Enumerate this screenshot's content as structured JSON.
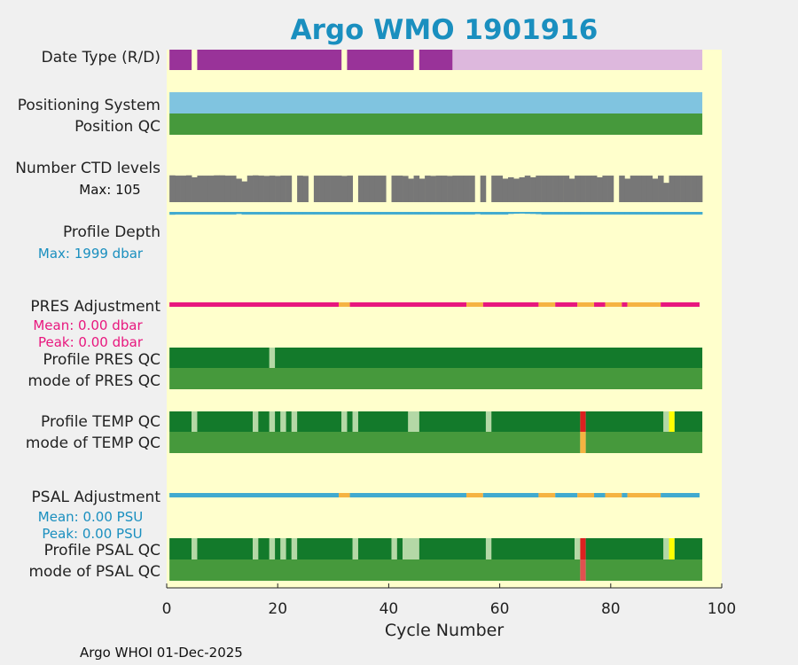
{
  "chart_data": {
    "type": "bar",
    "title": "Argo WMO 1901916",
    "xlabel": "Cycle Number",
    "xlim": [
      0,
      100
    ],
    "x_ticks": [
      0,
      20,
      40,
      60,
      80,
      100
    ],
    "x_tick_labels": [
      "0",
      "20",
      "40",
      "60",
      "80",
      "100"
    ],
    "footer": "Argo WHOI 01-Dec-2025",
    "colors": {
      "background": "#ffffcc",
      "page": "#f0f0f0",
      "title": "#1a8fbf",
      "purple": "#993399",
      "light_purple": "#ddb8dd",
      "light_blue": "#80c4e0",
      "green": "#46993c",
      "dark_green": "#137a2b",
      "pale_green": "#b4d8a6",
      "gray": "#777777",
      "teal": "#41aacf",
      "pink": "#e8177e",
      "orange": "#f5b342",
      "red": "#dd2020",
      "yellow": "#ffff00",
      "salmon": "#e05050"
    },
    "rows": [
      {
        "key": "date_type",
        "label": "Date Type (R/D)"
      },
      {
        "key": "positioning",
        "label": "Positioning System"
      },
      {
        "key": "position_qc",
        "label": "Position QC"
      },
      {
        "key": "ctd_levels",
        "label": "Number CTD levels",
        "stat": "Max: 105"
      },
      {
        "key": "profile_depth",
        "label": "Profile Depth",
        "stat": "Max: 1999 dbar"
      },
      {
        "key": "pres_adj",
        "label": "PRES Adjustment",
        "stats": [
          "Mean: 0.00 dbar",
          "Peak: 0.00 dbar"
        ]
      },
      {
        "key": "profile_pres_qc",
        "label": "Profile PRES QC"
      },
      {
        "key": "mode_pres_qc",
        "label": "mode of PRES QC"
      },
      {
        "key": "profile_temp_qc",
        "label": "Profile TEMP QC"
      },
      {
        "key": "mode_temp_qc",
        "label": "mode of TEMP QC"
      },
      {
        "key": "psal_adj",
        "label": "PSAL Adjustment",
        "stats": [
          "Mean: 0.00 PSU",
          "Peak: 0.00 PSU"
        ]
      },
      {
        "key": "profile_psal_qc",
        "label": "Profile PSAL QC"
      },
      {
        "key": "mode_psal_qc",
        "label": "mode of PSAL QC"
      }
    ],
    "series": {
      "date_type": {
        "segments": [
          [
            0.5,
            4.5,
            "purple"
          ],
          [
            5.5,
            31.5,
            "purple"
          ],
          [
            32.5,
            44.5,
            "purple"
          ],
          [
            45.5,
            51.5,
            "purple"
          ],
          [
            51.5,
            96.5,
            "light_purple"
          ]
        ]
      },
      "positioning": {
        "segments": [
          [
            0.5,
            96.5,
            "light_blue"
          ]
        ]
      },
      "position_qc": {
        "segments": [
          [
            0.5,
            96.5,
            "green"
          ]
        ]
      },
      "ctd_levels": {
        "max": 105,
        "values": [
          97,
          96,
          96,
          97,
          90,
          96,
          96,
          96,
          97,
          97,
          96,
          96,
          85,
          75,
          96,
          97,
          96,
          95,
          96,
          95,
          96,
          96,
          0,
          96,
          95,
          0,
          96,
          96,
          96,
          96,
          96,
          95,
          96,
          0,
          96,
          96,
          96,
          96,
          96,
          0,
          96,
          96,
          95,
          85,
          96,
          85,
          96,
          95,
          96,
          96,
          95,
          96,
          96,
          96,
          96,
          0,
          96,
          0,
          96,
          96,
          85,
          90,
          85,
          90,
          96,
          90,
          96,
          96,
          96,
          96,
          96,
          96,
          85,
          96,
          96,
          96,
          96,
          90,
          96,
          96,
          0,
          96,
          85,
          96,
          96,
          96,
          96,
          85,
          96,
          70,
          96,
          96,
          96,
          96,
          96,
          96
        ]
      },
      "profile_depth": {
        "max": 1999,
        "values": [
          100,
          92,
          92,
          92,
          92,
          92,
          92,
          92,
          92,
          92,
          92,
          92,
          75,
          92,
          92,
          92,
          92,
          92,
          92,
          92,
          92,
          92,
          92,
          92,
          92,
          92,
          92,
          92,
          92,
          92,
          92,
          92,
          92,
          92,
          92,
          92,
          92,
          92,
          92,
          92,
          92,
          92,
          92,
          92,
          92,
          92,
          92,
          92,
          92,
          92,
          92,
          92,
          92,
          92,
          92,
          78,
          92,
          92,
          92,
          92,
          92,
          72,
          64,
          60,
          68,
          72,
          80,
          92,
          92,
          92,
          92,
          92,
          92,
          92,
          92,
          92,
          92,
          92,
          92,
          92,
          92,
          92,
          92,
          92,
          92,
          92,
          92,
          92,
          92,
          92,
          92,
          92,
          92,
          92,
          92,
          92
        ]
      },
      "pres_adj": {
        "segments": [
          [
            0.5,
            31,
            "pink"
          ],
          [
            31,
            33,
            "orange"
          ],
          [
            33,
            54,
            "pink"
          ],
          [
            54,
            57,
            "orange"
          ],
          [
            57,
            67,
            "pink"
          ],
          [
            67,
            70,
            "orange"
          ],
          [
            70,
            74,
            "pink"
          ],
          [
            74,
            77,
            "orange"
          ],
          [
            77,
            79,
            "pink"
          ],
          [
            79,
            82,
            "orange"
          ],
          [
            82,
            83,
            "pink"
          ],
          [
            83,
            89,
            "orange"
          ],
          [
            89,
            96,
            "pink"
          ]
        ]
      },
      "profile_pres_qc": {
        "segments": [
          [
            0.5,
            18.5,
            "dark_green"
          ],
          [
            18.5,
            19.5,
            "pale_green"
          ],
          [
            19.5,
            96.5,
            "dark_green"
          ]
        ]
      },
      "mode_pres_qc": {
        "segments": [
          [
            0.5,
            96.5,
            "green"
          ]
        ]
      },
      "profile_temp_qc": {
        "segments": [
          [
            0.5,
            4.5,
            "dark_green"
          ],
          [
            4.5,
            5.5,
            "pale_green"
          ],
          [
            5.5,
            15.5,
            "dark_green"
          ],
          [
            15.5,
            16.5,
            "pale_green"
          ],
          [
            16.5,
            18.5,
            "dark_green"
          ],
          [
            18.5,
            19.5,
            "pale_green"
          ],
          [
            19.5,
            20.5,
            "dark_green"
          ],
          [
            20.5,
            21.5,
            "pale_green"
          ],
          [
            21.5,
            22.5,
            "dark_green"
          ],
          [
            22.5,
            23.5,
            "pale_green"
          ],
          [
            23.5,
            31.5,
            "dark_green"
          ],
          [
            31.5,
            32.5,
            "pale_green"
          ],
          [
            32.5,
            33.5,
            "dark_green"
          ],
          [
            33.5,
            34.5,
            "pale_green"
          ],
          [
            34.5,
            43.5,
            "dark_green"
          ],
          [
            43.5,
            45.5,
            "pale_green"
          ],
          [
            45.5,
            57.5,
            "dark_green"
          ],
          [
            57.5,
            58.5,
            "pale_green"
          ],
          [
            58.5,
            74.5,
            "dark_green"
          ],
          [
            74.5,
            75.5,
            "red"
          ],
          [
            75.5,
            89.5,
            "dark_green"
          ],
          [
            89.5,
            90.5,
            "pale_green"
          ],
          [
            90.5,
            91.5,
            "yellow"
          ],
          [
            91.5,
            96.5,
            "dark_green"
          ]
        ]
      },
      "mode_temp_qc": {
        "segments": [
          [
            0.5,
            74.5,
            "green"
          ],
          [
            74.5,
            75.5,
            "orange"
          ],
          [
            75.5,
            96.5,
            "green"
          ]
        ]
      },
      "psal_adj": {
        "segments": [
          [
            0.5,
            31,
            "teal"
          ],
          [
            31,
            33,
            "orange"
          ],
          [
            33,
            54,
            "teal"
          ],
          [
            54,
            57,
            "orange"
          ],
          [
            57,
            67,
            "teal"
          ],
          [
            67,
            70,
            "orange"
          ],
          [
            70,
            74,
            "teal"
          ],
          [
            74,
            77,
            "orange"
          ],
          [
            77,
            79,
            "teal"
          ],
          [
            79,
            82,
            "orange"
          ],
          [
            82,
            83,
            "teal"
          ],
          [
            83,
            89,
            "orange"
          ],
          [
            89,
            96,
            "teal"
          ]
        ]
      },
      "profile_psal_qc": {
        "segments": [
          [
            0.5,
            4.5,
            "dark_green"
          ],
          [
            4.5,
            5.5,
            "pale_green"
          ],
          [
            5.5,
            15.5,
            "dark_green"
          ],
          [
            15.5,
            16.5,
            "pale_green"
          ],
          [
            16.5,
            18.5,
            "dark_green"
          ],
          [
            18.5,
            19.5,
            "pale_green"
          ],
          [
            19.5,
            20.5,
            "dark_green"
          ],
          [
            20.5,
            21.5,
            "pale_green"
          ],
          [
            21.5,
            22.5,
            "dark_green"
          ],
          [
            22.5,
            23.5,
            "pale_green"
          ],
          [
            23.5,
            33.5,
            "dark_green"
          ],
          [
            33.5,
            34.5,
            "pale_green"
          ],
          [
            34.5,
            40.5,
            "dark_green"
          ],
          [
            40.5,
            41.5,
            "pale_green"
          ],
          [
            41.5,
            42.5,
            "dark_green"
          ],
          [
            42.5,
            45.5,
            "pale_green"
          ],
          [
            45.5,
            57.5,
            "dark_green"
          ],
          [
            57.5,
            58.5,
            "pale_green"
          ],
          [
            58.5,
            73.5,
            "dark_green"
          ],
          [
            73.5,
            74.5,
            "pale_green"
          ],
          [
            74.5,
            75.5,
            "red"
          ],
          [
            75.5,
            89.5,
            "dark_green"
          ],
          [
            89.5,
            90.5,
            "pale_green"
          ],
          [
            90.5,
            91.5,
            "yellow"
          ],
          [
            91.5,
            96.5,
            "dark_green"
          ]
        ]
      },
      "mode_psal_qc": {
        "segments": [
          [
            0.5,
            74.5,
            "green"
          ],
          [
            74.5,
            75.5,
            "salmon"
          ],
          [
            75.5,
            96.5,
            "green"
          ]
        ]
      }
    }
  }
}
